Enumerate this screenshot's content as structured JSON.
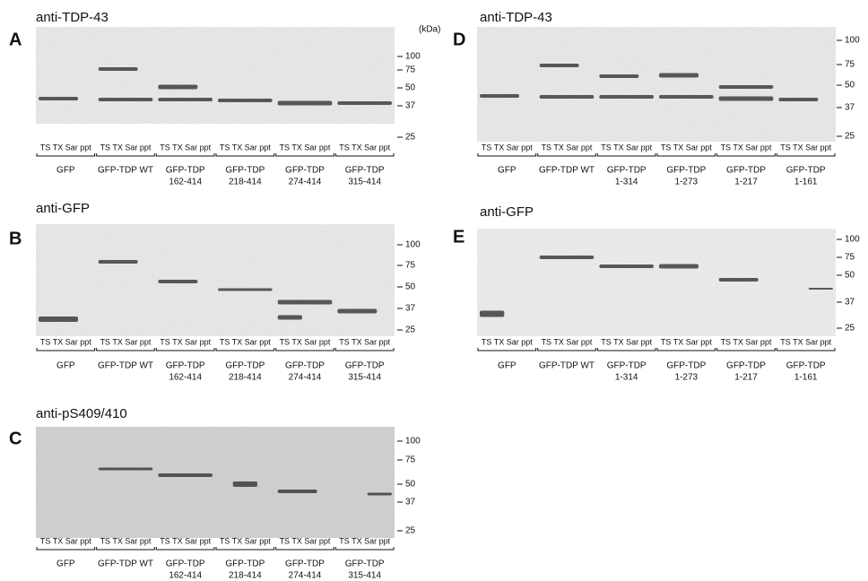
{
  "panels": [
    {
      "letter": "A",
      "antibody": "anti-TDP-43",
      "unit": "(kDa)",
      "markers": [
        100,
        75,
        50,
        37,
        25
      ],
      "lanes": [
        "TS TX Sar ppt",
        "TS TX Sar ppt",
        "TS TX Sar ppt",
        "TS TX Sar ppt",
        "TS TX Sar ppt",
        "TS TX Sar ppt"
      ],
      "groups": [
        [
          "GFP"
        ],
        [
          "GFP-TDP WT"
        ],
        [
          "GFP-TDP",
          "162-414"
        ],
        [
          "GFP-TDP",
          "218-414"
        ],
        [
          "GFP-TDP",
          "274-414"
        ],
        [
          "GFP-TDP",
          "315-414"
        ]
      ]
    },
    {
      "letter": "B",
      "antibody": "anti-GFP",
      "markers": [
        100,
        75,
        50,
        37,
        25
      ],
      "lanes": [
        "TS TX Sar ppt",
        "TS TX Sar ppt",
        "TS TX Sar ppt",
        "TS TX Sar ppt",
        "TS TX Sar ppt",
        "TS TX Sar ppt"
      ],
      "groups": [
        [
          "GFP"
        ],
        [
          "GFP-TDP WT"
        ],
        [
          "GFP-TDP",
          "162-414"
        ],
        [
          "GFP-TDP",
          "218-414"
        ],
        [
          "GFP-TDP",
          "274-414"
        ],
        [
          "GFP-TDP",
          "315-414"
        ]
      ]
    },
    {
      "letter": "C",
      "antibody": "anti-pS409/410",
      "markers": [
        100,
        75,
        50,
        37,
        25
      ],
      "lanes": [
        "TS TX Sar ppt",
        "TS TX Sar ppt",
        "TS TX Sar ppt",
        "TS TX Sar ppt",
        "TS TX Sar ppt",
        "TS TX Sar ppt"
      ],
      "groups": [
        [
          "GFP"
        ],
        [
          "GFP-TDP WT"
        ],
        [
          "GFP-TDP",
          "162-414"
        ],
        [
          "GFP-TDP",
          "218-414"
        ],
        [
          "GFP-TDP",
          "274-414"
        ],
        [
          "GFP-TDP",
          "315-414"
        ]
      ]
    },
    {
      "letter": "D",
      "antibody": "anti-TDP-43",
      "markers": [
        100,
        75,
        50,
        37,
        25
      ],
      "lanes": [
        "TS TX Sar ppt",
        "TS TX Sar ppt",
        "TS TX Sar ppt",
        "TS TX Sar ppt",
        "TS TX Sar ppt",
        "TS TX Sar ppt"
      ],
      "groups": [
        [
          "GFP"
        ],
        [
          "GFP-TDP WT"
        ],
        [
          "GFP-TDP",
          "1-314"
        ],
        [
          "GFP-TDP",
          "1-273"
        ],
        [
          "GFP-TDP",
          "1-217"
        ],
        [
          "GFP-TDP",
          "1-161"
        ]
      ]
    },
    {
      "letter": "E",
      "antibody": "anti-GFP",
      "markers": [
        100,
        75,
        50,
        37,
        25
      ],
      "lanes": [
        "TS TX Sar ppt",
        "TS TX Sar ppt",
        "TS TX Sar ppt",
        "TS TX Sar ppt",
        "TS TX Sar ppt",
        "TS TX Sar ppt"
      ],
      "groups": [
        [
          "GFP"
        ],
        [
          "GFP-TDP WT"
        ],
        [
          "GFP-TDP",
          "1-314"
        ],
        [
          "GFP-TDP",
          "1-273"
        ],
        [
          "GFP-TDP",
          "1-217"
        ],
        [
          "GFP-TDP",
          "1-161"
        ]
      ]
    }
  ]
}
